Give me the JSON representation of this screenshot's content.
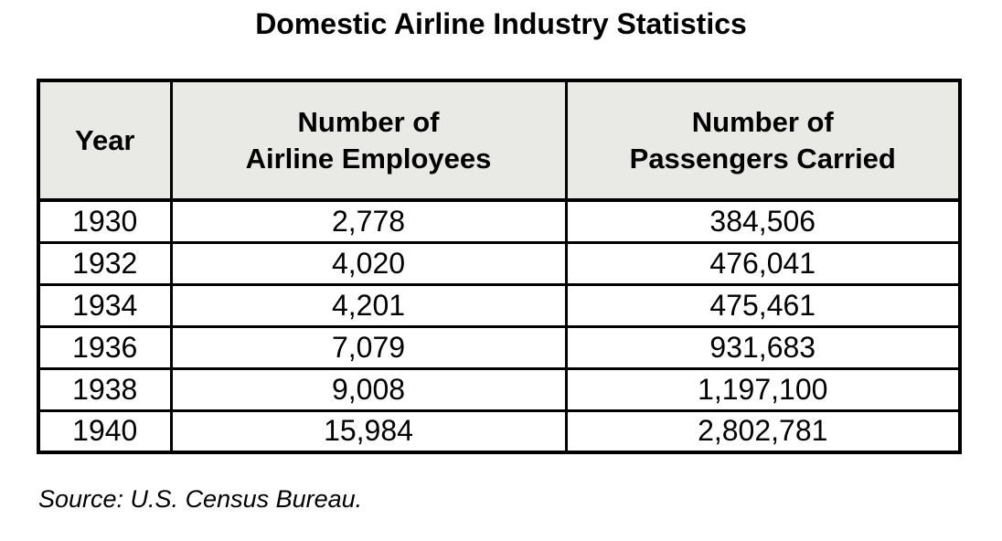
{
  "page": {
    "title": "Domestic Airline Industry Statistics",
    "source_note": "Source: U.S. Census Bureau."
  },
  "table": {
    "columns": [
      {
        "lines": [
          "Year"
        ]
      },
      {
        "lines": [
          "Number of",
          "Airline Employees"
        ]
      },
      {
        "lines": [
          "Number of",
          "Passengers Carried"
        ]
      }
    ],
    "rows": [
      {
        "year": "1930",
        "employees": "2,778",
        "passengers": "384,506"
      },
      {
        "year": "1932",
        "employees": "4,020",
        "passengers": "476,041"
      },
      {
        "year": "1934",
        "employees": "4,201",
        "passengers": "475,461"
      },
      {
        "year": "1936",
        "employees": "7,079",
        "passengers": "931,683"
      },
      {
        "year": "1938",
        "employees": "9,008",
        "passengers": "1,197,100"
      },
      {
        "year": "1940",
        "employees": "15,984",
        "passengers": "2,802,781"
      }
    ]
  },
  "chart_data": {
    "type": "table",
    "title": "Domestic Airline Industry Statistics",
    "columns": [
      "Year",
      "Number of Airline Employees",
      "Number of Passengers Carried"
    ],
    "rows": [
      [
        1930,
        2778,
        384506
      ],
      [
        1932,
        4020,
        476041
      ],
      [
        1934,
        4201,
        475461
      ],
      [
        1936,
        7079,
        931683
      ],
      [
        1938,
        9008,
        1197100
      ],
      [
        1940,
        15984,
        2802781
      ]
    ],
    "source": "U.S. Census Bureau"
  },
  "colors": {
    "background": "#ffffff",
    "text": "#000000",
    "border": "#000000",
    "header_bg": "#e9e9e6"
  }
}
